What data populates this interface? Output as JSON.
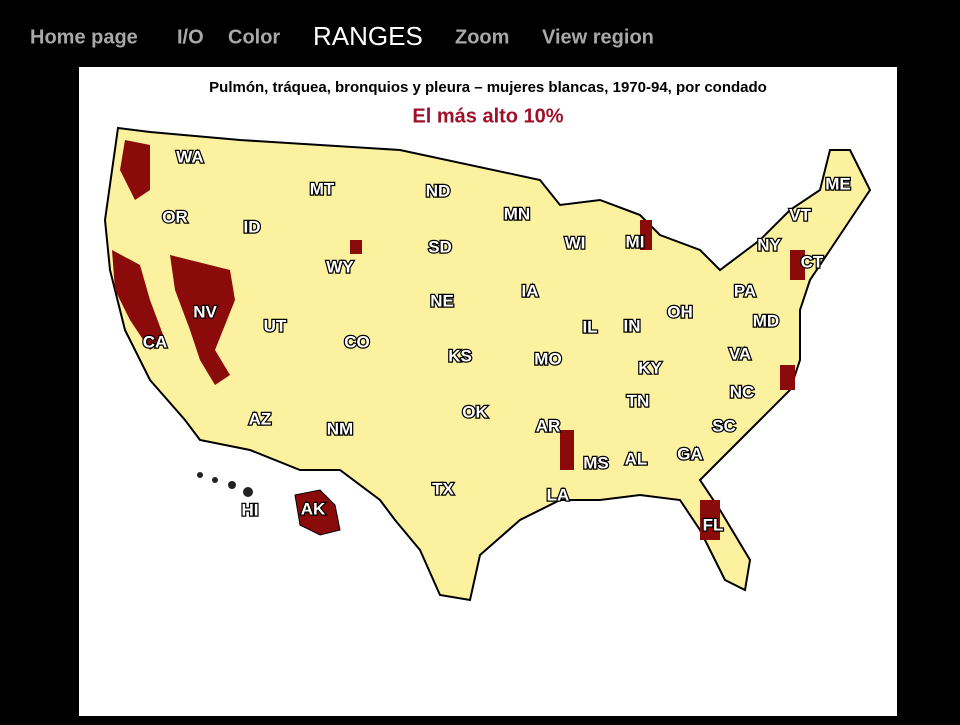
{
  "nav": [
    "Home page",
    "I/O",
    "Color",
    "RANGES",
    "Zoom",
    "View region"
  ],
  "map": {
    "title": "Pulmón, tráquea, bronquios y pleura – mujeres blancas, 1970-94, por condado",
    "subtitle": "El más alto 10%",
    "states": [
      "WA",
      "OR",
      "CA",
      "NV",
      "ID",
      "MT",
      "WY",
      "UT",
      "CO",
      "AZ",
      "NM",
      "ND",
      "SD",
      "NE",
      "KS",
      "OK",
      "TX",
      "MN",
      "IA",
      "MO",
      "AR",
      "LA",
      "WI",
      "IL",
      "MI",
      "IN",
      "OH",
      "KY",
      "TN",
      "MS",
      "AL",
      "GA",
      "FL",
      "SC",
      "NC",
      "VA",
      "MD",
      "PA",
      "NY",
      "VT",
      "ME",
      "CT",
      "HI",
      "AK"
    ]
  }
}
